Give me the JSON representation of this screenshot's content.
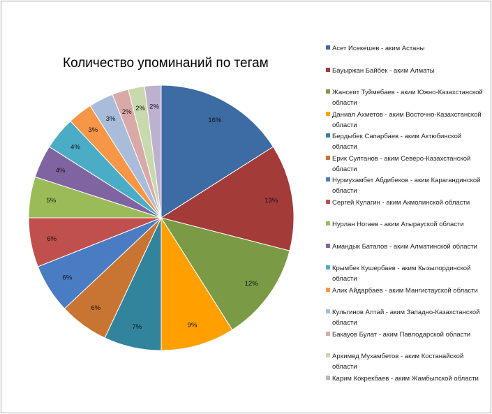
{
  "chart_data": {
    "type": "pie",
    "title": "Количество упоминаний по тегам",
    "legend_position": "right",
    "slices": [
      {
        "label": "Асет Исекешев - аким Астаны",
        "label_lines": [
          "Асет Исекешев  - аким  Астаны"
        ],
        "value": 16,
        "data_label": "16%",
        "color": "#3D6BA3"
      },
      {
        "label": "Бауыржан Байбек - аким Алматы",
        "label_lines": [
          "Бауыржан Байбек  - аким  Алматы"
        ],
        "value": 13,
        "data_label": "13%",
        "color": "#A33B39"
      },
      {
        "label": "Жансеит Туймебаев - аким Южно-Казахстанской области",
        "label_lines": [
          "Жансеит Туймебаев - аким Южно-Казахстанской",
          "области"
        ],
        "value": 12,
        "data_label": "12%",
        "color": "#7B9A45"
      },
      {
        "label": "Даниал Ахметов - аким Восточно-Казахстанской области",
        "label_lines": [
          "Даниал Ахметов - аким Восточно-Казахстанской",
          "области"
        ],
        "value": 9,
        "data_label": "9%",
        "color": "#FFA000"
      },
      {
        "label": "Бердыбек Сапарбаев - аким Актюбинской области",
        "label_lines": [
          "Бердыбек Сапарбаев  - аким Актюбинской",
          "области"
        ],
        "value": 7,
        "data_label": "7%",
        "color": "#31849B"
      },
      {
        "label": "Ерик Султанов - аким Северо-Казахстанской области",
        "label_lines": [
          "Ерик Султанов - аким Северо-Казахстанской",
          "области"
        ],
        "value": 6,
        "data_label": "6%",
        "color": "#C87533"
      },
      {
        "label": "Нурмухамбет Абдибеков - аким Карагандинской области",
        "label_lines": [
          "Нурмухамбет Абдибеков - аким Карагандинской",
          "области"
        ],
        "value": 6,
        "data_label": "6%",
        "color": "#4A7CC4"
      },
      {
        "label": "Сергей Кулагин - аким Акмолинской области",
        "label_lines": [
          "Сергей Кулагин - аким Акмолинской области"
        ],
        "value": 6,
        "data_label": "6%",
        "color": "#C0504D"
      },
      {
        "label": "Нурлан Ногаев - аким Атырауской области",
        "label_lines": [
          "Нурлан Ногаев - аким Атырауской области"
        ],
        "value": 5,
        "data_label": "5%",
        "color": "#9BBB59"
      },
      {
        "label": "Амандык Баталов - аким Алматинской области",
        "label_lines": [
          "Амандык Баталов - аким Алматинской области"
        ],
        "value": 4,
        "data_label": "4%",
        "color": "#8064A2"
      },
      {
        "label": "Крымбек Кушербаев - аким Кызылординской области",
        "label_lines": [
          "Крымбек Кушербаев - аким Кызылординской",
          "области"
        ],
        "value": 4,
        "data_label": "4%",
        "color": "#4BACC6"
      },
      {
        "label": "Алик Айдарбаев - аким Мангистауской области",
        "label_lines": [
          "Алик Айдарбаев - аким Мангистауской области"
        ],
        "value": 3,
        "data_label": "3%",
        "color": "#F79646"
      },
      {
        "label": "Кульгинов Алтай - аким Западно-Казахстанской области",
        "label_lines": [
          "Кульгинов Алтай - аким Западно-Казахстанской",
          "области"
        ],
        "value": 3,
        "data_label": "3%",
        "color": "#A9BCDA"
      },
      {
        "label": "Бакауов Булат - аким Павлодарской области",
        "label_lines": [
          "Бакауов Булат - аким Павлодарской области"
        ],
        "value": 2,
        "data_label": "2%",
        "color": "#D9A9A8"
      },
      {
        "label": "Архимед Мухамбетов - аким Костанайской области",
        "label_lines": [
          "Архимед Мухамбетов - аким Костанайской",
          "области"
        ],
        "value": 2,
        "data_label": "2%",
        "color": "#C8D9AE"
      },
      {
        "label": "Карим Кокрекбаев - аким Жамбылской области",
        "label_lines": [
          "Карим Кокрекбаев - аким Жамбылской области"
        ],
        "value": 2,
        "data_label": "2%",
        "color": "#BCB1CE"
      }
    ]
  }
}
